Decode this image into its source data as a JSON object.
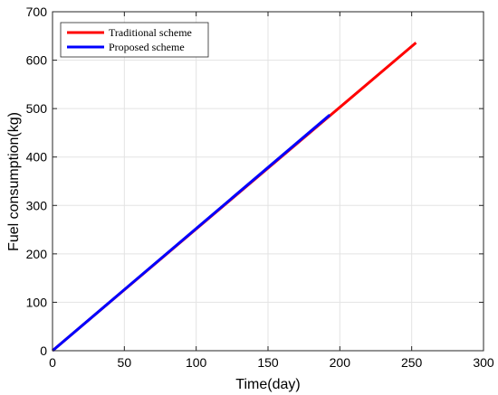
{
  "chart_data": {
    "type": "line",
    "xlabel": "Time(day)",
    "ylabel": "Fuel consumption(kg)",
    "xlim": [
      0,
      300
    ],
    "ylim": [
      0,
      700
    ],
    "xticks": [
      "0",
      "50",
      "100",
      "150",
      "200",
      "250",
      "300"
    ],
    "yticks": [
      "0",
      "100",
      "200",
      "300",
      "400",
      "500",
      "600",
      "700"
    ],
    "grid": true,
    "legend_position": "top-left",
    "series": [
      {
        "name": "Traditional scheme",
        "color": "#ff0000",
        "x": [
          0,
          253
        ],
        "y": [
          0,
          636
        ]
      },
      {
        "name": "Proposed scheme",
        "color": "#0000ff",
        "x": [
          0,
          193
        ],
        "y": [
          0,
          487
        ]
      }
    ]
  }
}
